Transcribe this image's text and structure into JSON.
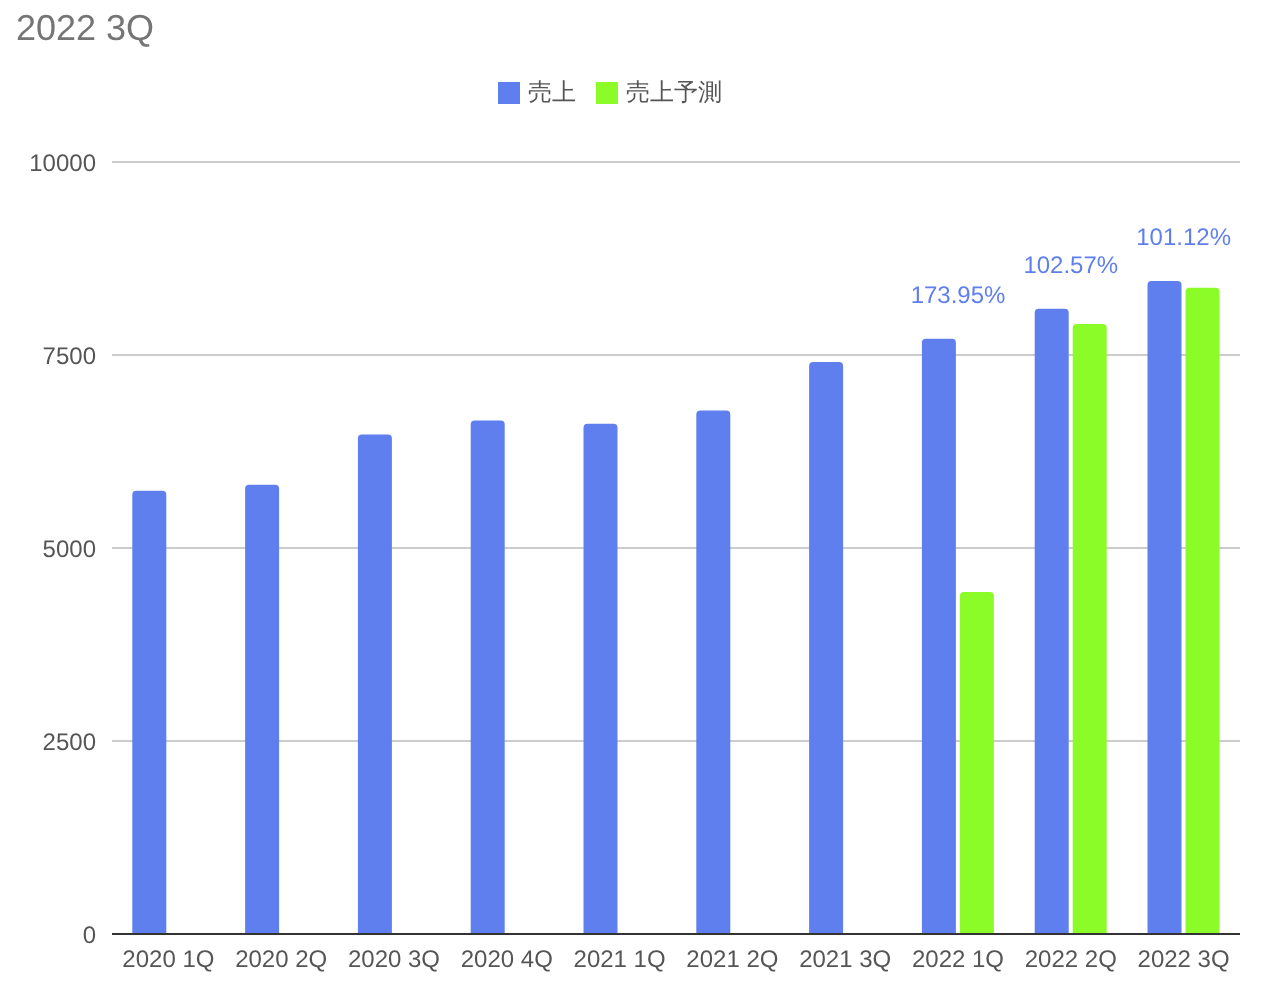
{
  "chart_data": {
    "type": "bar",
    "title": "2022 3Q",
    "categories": [
      "2020 1Q",
      "2020 2Q",
      "2020 3Q",
      "2020 4Q",
      "2021 1Q",
      "2021 2Q",
      "2021 3Q",
      "2022 1Q",
      "2022 2Q",
      "2022 3Q"
    ],
    "series": [
      {
        "name": "売上",
        "color": "#5f7fef",
        "values": [
          5740,
          5820,
          6470,
          6650,
          6610,
          6780,
          7410,
          7710,
          8100,
          8460
        ]
      },
      {
        "name": "売上予測",
        "color": "#8cfc28",
        "values": [
          null,
          null,
          null,
          null,
          null,
          null,
          null,
          4430,
          7900,
          8370
        ]
      }
    ],
    "ylim": [
      0,
      10000
    ],
    "yticks": [
      0,
      2500,
      5000,
      7500,
      10000
    ],
    "annotations": [
      "173.95%",
      "102.57%",
      "101.12%"
    ],
    "grid": "y",
    "legend": "top"
  }
}
